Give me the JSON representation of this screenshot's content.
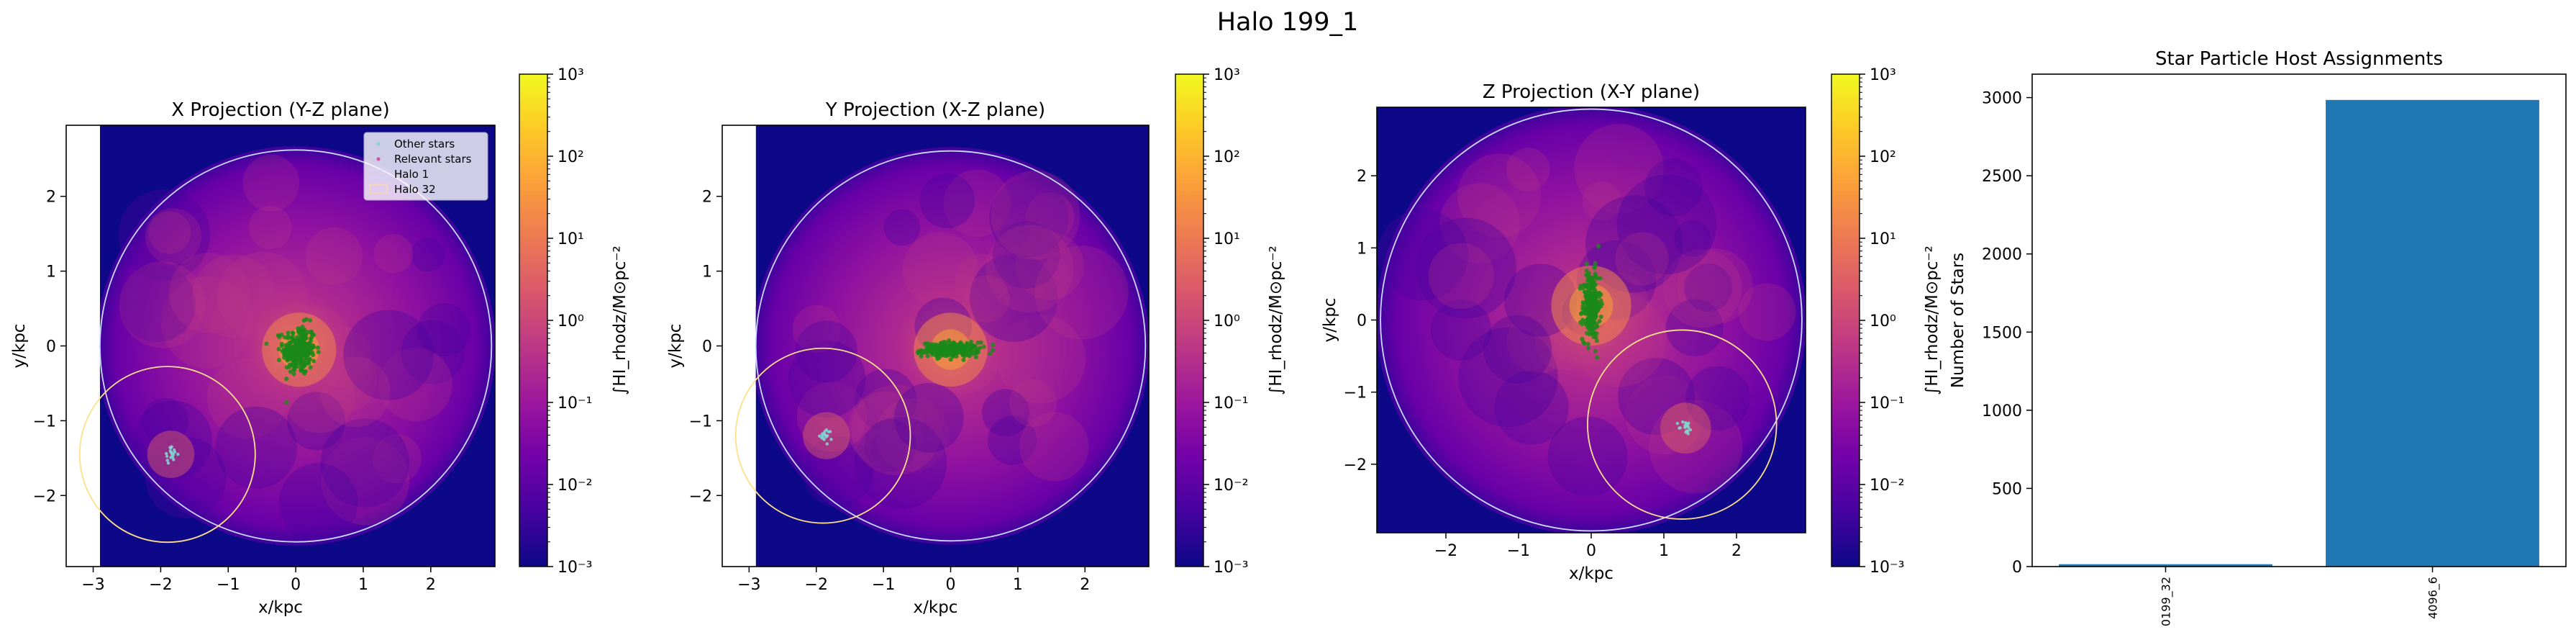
{
  "figure": {
    "suptitle": "Halo 199_1"
  },
  "colors": {
    "colormap": [
      "#0d0887",
      "#46039f",
      "#7201a8",
      "#9c179e",
      "#bd3786",
      "#d8576b",
      "#ed7953",
      "#fb9f3a",
      "#fdca26",
      "#f0f921"
    ],
    "background": "#0d0887",
    "halo_1_circle": "#c8d8ff",
    "halo_32_circle": "#ffe08a",
    "relevant_stars": "#1a8a1a",
    "other_stars": "#7fd4d0",
    "bar": "#1f77b4"
  },
  "chart_data": [
    {
      "type": "heatmap",
      "title": "X Projection (Y-Z plane)",
      "xlabel": "x/kpc",
      "ylabel": "y/kpc",
      "xlim": [
        -3.4,
        2.95
      ],
      "ylim": [
        -2.95,
        2.95
      ],
      "extent_x": [
        -2.9,
        2.95
      ],
      "xticks": [
        -3,
        -2,
        -1,
        0,
        1,
        2
      ],
      "yticks": [
        -2,
        -1,
        0,
        1,
        2
      ],
      "colorbar": {
        "label": "∫HI_rhodz/M⊙pc⁻²",
        "scale": "log",
        "range": [
          0.001,
          1000
        ],
        "tick_labels": [
          "10⁻³",
          "10⁻²",
          "10⁻¹",
          "10⁰",
          "10¹",
          "10²",
          "10³"
        ]
      },
      "legend": {
        "placement": "upper right",
        "entries": [
          "Other stars",
          "Relevant stars",
          "Halo 1",
          "Halo 32"
        ]
      },
      "halos": [
        {
          "name": "Halo 1",
          "center": [
            0,
            0
          ],
          "radius": 2.9
        },
        {
          "name": "Halo 32",
          "center": [
            -1.9,
            -1.45
          ],
          "radius": 1.3
        }
      ],
      "relevant_star_cluster": {
        "center": [
          0.05,
          -0.05
        ],
        "spread": [
          0.2,
          0.28
        ]
      },
      "other_star_cluster": {
        "center": [
          -1.85,
          -1.45
        ],
        "spread": [
          0.05,
          0.05
        ]
      }
    },
    {
      "type": "heatmap",
      "title": "Y Projection (X-Z plane)",
      "xlabel": "x/kpc",
      "ylabel": "y/kpc",
      "xlim": [
        -3.4,
        2.95
      ],
      "ylim": [
        -2.95,
        2.95
      ],
      "extent_x": [
        -2.9,
        2.95
      ],
      "xticks": [
        -3,
        -2,
        -1,
        0,
        1,
        2
      ],
      "yticks": [
        -2,
        -1,
        0,
        1,
        2
      ],
      "colorbar": {
        "label": "∫HI_rhodz/M⊙pc⁻²",
        "scale": "log",
        "range": [
          0.001,
          1000
        ],
        "tick_labels": [
          "10⁻³",
          "10⁻²",
          "10⁻¹",
          "10⁰",
          "10¹",
          "10²",
          "10³"
        ]
      },
      "halos": [
        {
          "name": "Halo 1",
          "center": [
            0,
            0
          ],
          "radius": 2.9
        },
        {
          "name": "Halo 32",
          "center": [
            -1.9,
            -1.2
          ],
          "radius": 1.3
        }
      ],
      "relevant_star_cluster": {
        "center": [
          0.0,
          -0.05
        ],
        "spread": [
          0.35,
          0.08
        ]
      },
      "other_star_cluster": {
        "center": [
          -1.85,
          -1.2
        ],
        "spread": [
          0.05,
          0.05
        ]
      }
    },
    {
      "type": "heatmap",
      "title": "Z Projection (X-Y plane)",
      "xlabel": "x/kpc",
      "ylabel": "y/kpc",
      "xlim": [
        -2.95,
        2.95
      ],
      "ylim": [
        -2.95,
        2.95
      ],
      "extent_x": [
        -2.95,
        2.95
      ],
      "xticks": [
        -2,
        -1,
        0,
        1,
        2
      ],
      "yticks": [
        -2,
        -1,
        0,
        1,
        2
      ],
      "colorbar": {
        "label": "∫HI_rhodz/M⊙pc⁻²",
        "scale": "log",
        "range": [
          0.001,
          1000
        ],
        "tick_labels": [
          "10⁻³",
          "10⁻²",
          "10⁻¹",
          "10⁰",
          "10¹",
          "10²",
          "10³"
        ]
      },
      "halos": [
        {
          "name": "Halo 1",
          "center": [
            0,
            0
          ],
          "radius": 2.9
        },
        {
          "name": "Halo 32",
          "center": [
            1.25,
            -1.45
          ],
          "radius": 1.3
        }
      ],
      "relevant_star_cluster": {
        "center": [
          0.0,
          0.2
        ],
        "spread": [
          0.1,
          0.4
        ]
      },
      "other_star_cluster": {
        "center": [
          1.3,
          -1.5
        ],
        "spread": [
          0.05,
          0.05
        ]
      }
    },
    {
      "type": "bar",
      "title": "Star Particle Host Assignments",
      "xlabel": "",
      "ylabel": "Number of Stars",
      "categories": [
        "0199_32",
        "4096_6"
      ],
      "values": [
        15,
        2985
      ],
      "ylim": [
        0,
        3150
      ],
      "yticks": [
        0,
        500,
        1000,
        1500,
        2000,
        2500,
        3000
      ]
    }
  ]
}
